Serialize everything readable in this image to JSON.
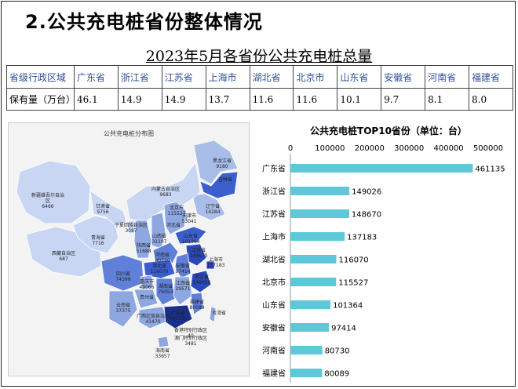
{
  "section_title": "2.公共充电桩省份整体情况",
  "table": {
    "title": "2023年5月各省份公共充电桩总量",
    "header_label": "省级行政区域",
    "value_label": "保有量（万台）",
    "provinces": [
      "广东省",
      "浙江省",
      "江苏省",
      "上海市",
      "湖北省",
      "北京市",
      "山东省",
      "安徽省",
      "河南省",
      "福建省"
    ],
    "values": [
      "46.1",
      "14.9",
      "14.9",
      "13.7",
      "11.6",
      "11.6",
      "10.1",
      "9.7",
      "8.1",
      "8.0"
    ]
  },
  "map": {
    "title": "公共充电桩分布图",
    "regions": [
      {
        "name": "黑龙江省",
        "value": "9180",
        "color": "#a9bde9"
      },
      {
        "name": "吉林省",
        "value": "",
        "color": "#3a5fcd"
      },
      {
        "name": "辽宁省",
        "value": "14284",
        "color": "#a9bde9"
      },
      {
        "name": "内蒙古自治区",
        "value": "9683",
        "color": "#c8d6f4"
      },
      {
        "name": "新疆维吾尔自治区",
        "value": "6466",
        "color": "#c8d6f4"
      },
      {
        "name": "西藏自治区",
        "value": "687",
        "color": "#c8d6f4"
      },
      {
        "name": "青海省",
        "value": "7716",
        "color": "#c8d6f4"
      },
      {
        "name": "甘肃省",
        "value": "9756",
        "color": "#c8d6f4"
      },
      {
        "name": "宁夏回族自治区",
        "value": "3087",
        "color": "#c8d6f4"
      },
      {
        "name": "陕西省",
        "value": "51688",
        "color": "#8ea7e0"
      },
      {
        "name": "山西省",
        "value": "31107",
        "color": "#8ea7e0"
      },
      {
        "name": "北京市",
        "value": "115527",
        "color": "#5f7fd8"
      },
      {
        "name": "天津市",
        "value": "53041",
        "color": "#8ea7e0"
      },
      {
        "name": "河北省",
        "value": "",
        "color": "#8ea7e0"
      },
      {
        "name": "山东省",
        "value": "101364",
        "color": "#3a5fcd"
      },
      {
        "name": "河南省",
        "value": "80730",
        "color": "#5f7fd8"
      },
      {
        "name": "江苏省",
        "value": "148670",
        "color": "#2a48b8"
      },
      {
        "name": "安徽省",
        "value": "97414",
        "color": "#5f7fd8"
      },
      {
        "name": "上海市",
        "value": "137183",
        "color": "#2a48b8"
      },
      {
        "name": "浙江省",
        "value": "149026",
        "color": "#2a48b8"
      },
      {
        "name": "湖北省",
        "value": "116070",
        "color": "#3a5fcd"
      },
      {
        "name": "四川省",
        "value": "74399",
        "color": "#5f7fd8"
      },
      {
        "name": "重庆市",
        "value": "49065",
        "color": "#8ea7e0"
      },
      {
        "name": "贵州省",
        "value": "",
        "color": "#8ea7e0"
      },
      {
        "name": "湖南省",
        "value": "76053",
        "color": "#5f7fd8"
      },
      {
        "name": "江西省",
        "value": "29571",
        "color": "#8ea7e0"
      },
      {
        "name": "福建省",
        "value": "80089",
        "color": "#5f7fd8"
      },
      {
        "name": "台湾省",
        "value": "",
        "color": "#8ea7e0"
      },
      {
        "name": "云南省",
        "value": "37375",
        "color": "#8ea7e0"
      },
      {
        "name": "广西壮族自治区",
        "value": "41470",
        "color": "#8ea7e0"
      },
      {
        "name": "广东省",
        "value": "461135",
        "color": "#1a2f8a"
      },
      {
        "name": "香港特别行政区",
        "value": "40",
        "color": "#ffffff"
      },
      {
        "name": "澳门特别行政区",
        "value": "3481",
        "color": "#ffffff"
      },
      {
        "name": "海南省",
        "value": "33657",
        "color": "#8ea7e0"
      }
    ]
  },
  "chart_data": {
    "type": "bar",
    "orientation": "horizontal",
    "title": "公共充电桩TOP10省份（单位：台）",
    "categories": [
      "广东省",
      "浙江省",
      "江苏省",
      "上海市",
      "湖北省",
      "北京市",
      "山东省",
      "安徽省",
      "河南省",
      "福建省"
    ],
    "values": [
      461135,
      149026,
      148670,
      137183,
      116070,
      115527,
      101364,
      97414,
      80730,
      80089
    ],
    "xlim": [
      0,
      500000
    ],
    "x_ticks": [
      "0",
      "100000",
      "200000",
      "300000",
      "400000",
      "500000"
    ],
    "bar_color": "#5ec8d8",
    "grid": false,
    "legend": "none"
  }
}
